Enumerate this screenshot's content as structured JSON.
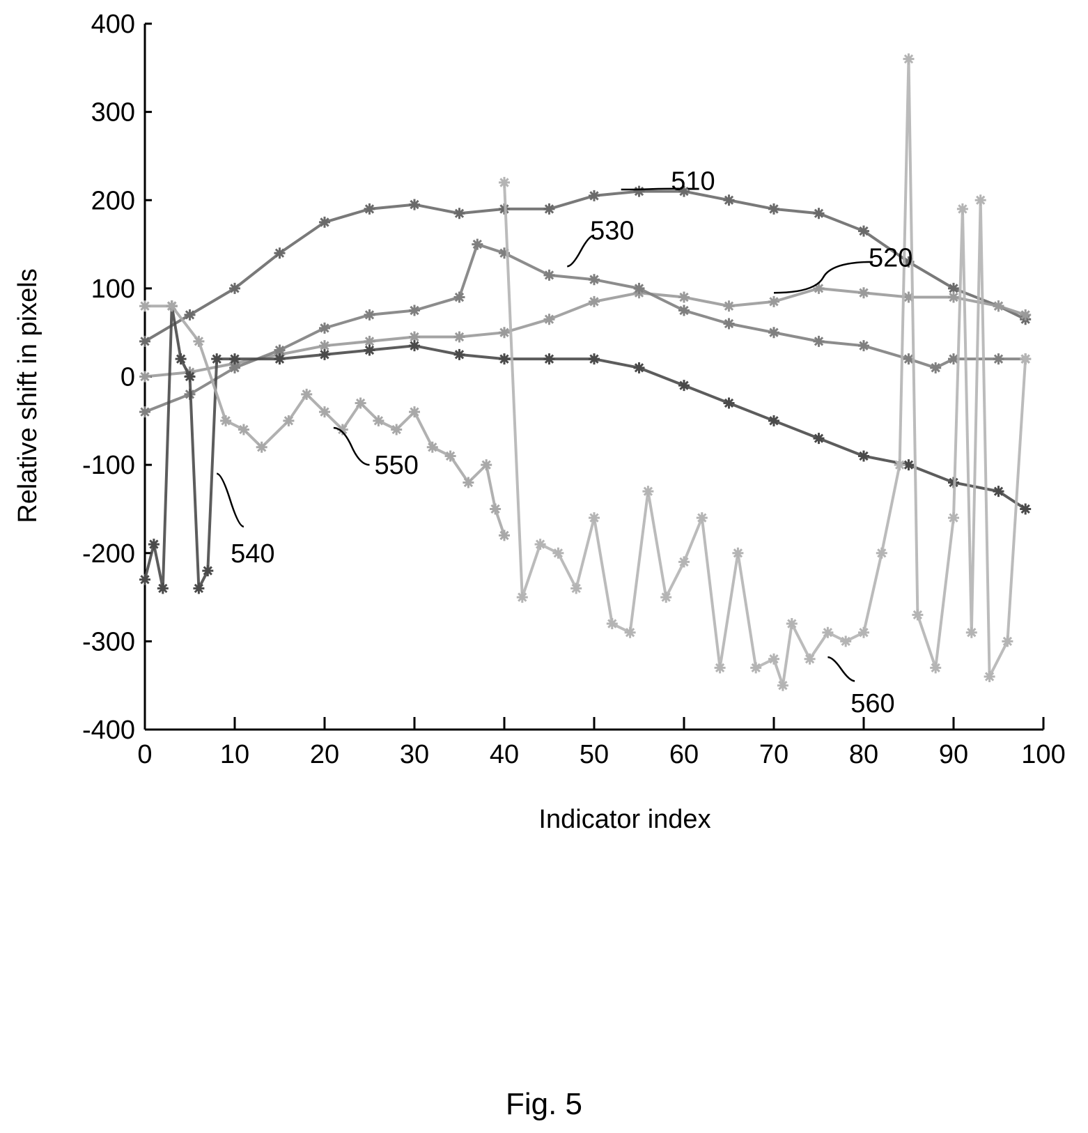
{
  "caption": "Fig. 5",
  "chart_data": {
    "type": "line",
    "title": "",
    "xlabel": "Indicator index",
    "ylabel": "Relative shift in pixels",
    "xlim": [
      0,
      100
    ],
    "ylim": [
      -400,
      400
    ],
    "x_ticks": [
      0,
      10,
      20,
      30,
      40,
      50,
      60,
      70,
      80,
      90,
      100
    ],
    "y_ticks": [
      400,
      300,
      200,
      100,
      0,
      -100,
      -200,
      -300,
      -400
    ],
    "grid": false,
    "legend": "none",
    "series": [
      {
        "id": "510",
        "color": "#6a6a6a",
        "x": [
          0,
          5,
          10,
          15,
          20,
          25,
          30,
          35,
          40,
          45,
          50,
          55,
          60,
          65,
          70,
          75,
          80,
          85,
          90,
          95,
          98
        ],
        "y": [
          40,
          70,
          100,
          140,
          175,
          190,
          195,
          185,
          190,
          190,
          205,
          210,
          210,
          200,
          190,
          185,
          165,
          130,
          100,
          80,
          65
        ]
      },
      {
        "id": "520",
        "color": "#9a9a9a",
        "x": [
          0,
          5,
          10,
          15,
          20,
          25,
          30,
          35,
          40,
          45,
          50,
          55,
          60,
          65,
          70,
          75,
          80,
          85,
          90,
          95,
          98
        ],
        "y": [
          0,
          5,
          15,
          25,
          35,
          40,
          45,
          45,
          50,
          65,
          85,
          95,
          90,
          80,
          85,
          100,
          95,
          90,
          90,
          80,
          70
        ]
      },
      {
        "id": "530",
        "color": "#7f7f7f",
        "x": [
          0,
          5,
          10,
          15,
          20,
          25,
          30,
          35,
          37,
          40,
          45,
          50,
          55,
          60,
          65,
          70,
          75,
          80,
          85,
          88,
          90,
          95,
          98
        ],
        "y": [
          -40,
          -20,
          10,
          30,
          55,
          70,
          75,
          90,
          150,
          140,
          115,
          110,
          100,
          75,
          60,
          50,
          40,
          35,
          20,
          10,
          20,
          20,
          20
        ]
      },
      {
        "id": "540",
        "color": "#4a4a4a",
        "x": [
          0,
          1,
          2,
          3,
          4,
          5,
          6,
          7,
          8,
          10,
          15,
          20,
          25,
          30,
          35,
          40,
          45,
          50,
          55,
          60,
          65,
          70,
          75,
          80,
          85,
          90,
          95,
          98
        ],
        "y": [
          -230,
          -190,
          -240,
          80,
          20,
          0,
          -240,
          -220,
          20,
          20,
          20,
          25,
          30,
          35,
          25,
          20,
          20,
          20,
          10,
          -10,
          -30,
          -50,
          -70,
          -90,
          -100,
          -120,
          -130,
          -150
        ]
      },
      {
        "id": "550",
        "color": "#a8a8a8",
        "x": [
          0,
          3,
          6,
          9,
          11,
          13,
          16,
          18,
          20,
          22,
          24,
          26,
          28,
          30,
          32,
          34,
          36,
          38,
          39,
          40
        ],
        "y": [
          80,
          80,
          40,
          -50,
          -60,
          -80,
          -50,
          -20,
          -40,
          -60,
          -30,
          -50,
          -60,
          -40,
          -80,
          -90,
          -120,
          -100,
          -150,
          -180
        ]
      },
      {
        "id": "560",
        "color": "#b4b4b4",
        "x": [
          40,
          42,
          44,
          46,
          48,
          50,
          52,
          54,
          56,
          58,
          60,
          62,
          64,
          66,
          68,
          70,
          71,
          72,
          74,
          76,
          78,
          80,
          82,
          84,
          85,
          86,
          88,
          90,
          91,
          92,
          93,
          94,
          96,
          98
        ],
        "y": [
          220,
          -250,
          -190,
          -200,
          -240,
          -160,
          -280,
          -290,
          -130,
          -250,
          -210,
          -160,
          -330,
          -200,
          -330,
          -320,
          -350,
          -280,
          -320,
          -290,
          -300,
          -290,
          -200,
          -100,
          360,
          -270,
          -330,
          -160,
          190,
          -290,
          200,
          -340,
          -300,
          20
        ]
      }
    ],
    "annotations": [
      {
        "text": "510",
        "x": 61,
        "y": 222
      },
      {
        "text": "520",
        "x": 83,
        "y": 135
      },
      {
        "text": "530",
        "x": 52,
        "y": 166
      },
      {
        "text": "540",
        "x": 12,
        "y": -200
      },
      {
        "text": "550",
        "x": 28,
        "y": -100
      },
      {
        "text": "560",
        "x": 81,
        "y": -370
      }
    ]
  }
}
